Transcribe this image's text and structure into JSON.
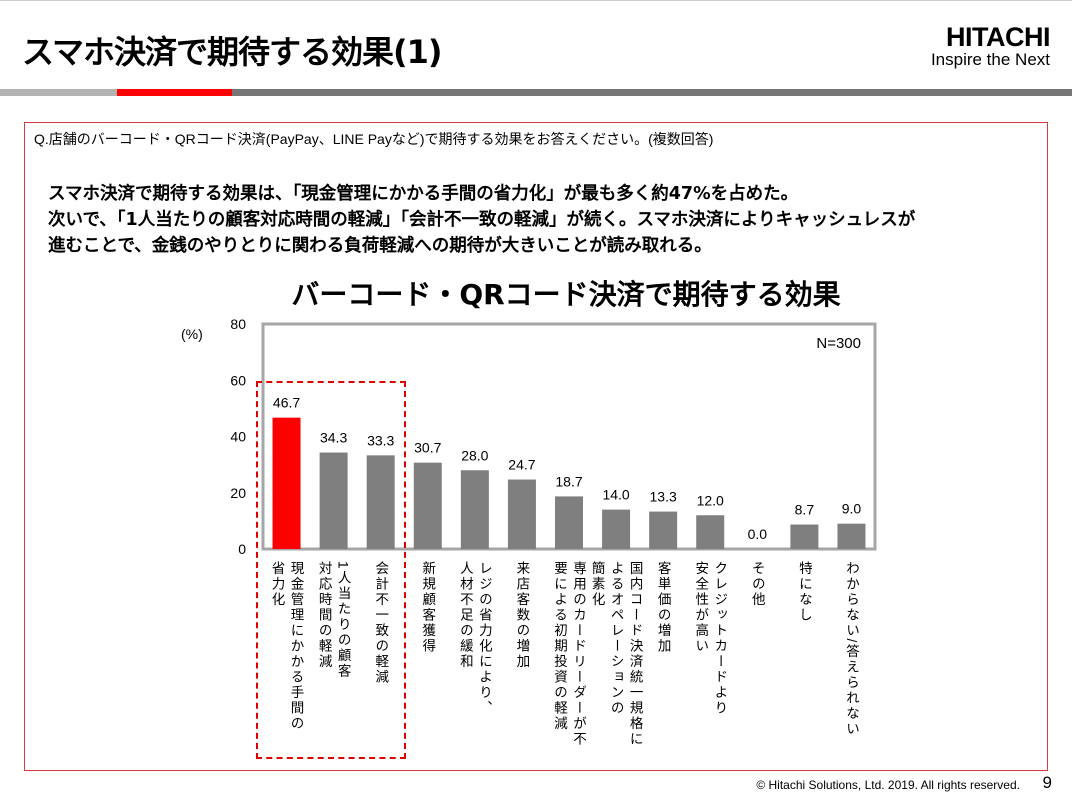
{
  "header": {
    "title": "スマホ決済で期待する効果(1)",
    "logo_brand": "HITACHI",
    "logo_tagline": "Inspire the Next"
  },
  "question": "Q.店舗のバーコード・QRコード決済(PayPay、LINE Payなど)で期待する効果をお答えください。(複数回答)",
  "summary": [
    "スマホ決済で期待する効果は、「現金管理にかかる手間の省力化」が最も多く約47%を占めた。",
    "次いで、「1人当たりの顧客対応時間の軽減」「会計不一致の軽減」が続く。スマホ決済によりキャッシュレスが",
    "進むことで、金銭のやりとりに関わる負荷軽減への期待が大きいことが読み取れる。"
  ],
  "footer": {
    "copyright": "© Hitachi Solutions, Ltd. 2019. All rights reserved.",
    "page": "9"
  },
  "colors": {
    "highlight": "#ff0000",
    "bar": "#7f7f7f",
    "accent": "#e60012"
  },
  "chart_data": {
    "type": "bar",
    "title": "バーコード・QRコード決済で期待する効果",
    "ylabel": "(%)",
    "note": "N=300",
    "ylim": [
      0,
      80
    ],
    "yticks": [
      0,
      20,
      40,
      60,
      80
    ],
    "categories": [
      "現金管理にかかる手間の\n省力化",
      "1人当たりの顧客\n対応時間の軽減",
      "会計不一致の軽減",
      "新規顧客獲得",
      "レジの省力化により、\n人材不足の緩和",
      "来店客数の増加",
      "専用のカードリーダーが不\n要による初期投資の軽減",
      "国内コード決済統一規格に\nよるオペレーションの\n簡素化",
      "客単価の増加",
      "クレジットカードより\n安全性が高い",
      "その他",
      "特になし",
      "わからない/答えられない"
    ],
    "values": [
      46.7,
      34.3,
      33.3,
      30.7,
      28.0,
      24.7,
      18.7,
      14.0,
      13.3,
      12.0,
      0.0,
      8.7,
      9.0
    ],
    "value_labels": [
      "46.7",
      "34.3",
      "33.3",
      "30.7",
      "28.0",
      "24.7",
      "18.7",
      "14.0",
      "13.3",
      "12.0",
      "0.0",
      "8.7",
      "9.0"
    ],
    "highlighted_index": 0,
    "highlight_box": "first three categories"
  }
}
